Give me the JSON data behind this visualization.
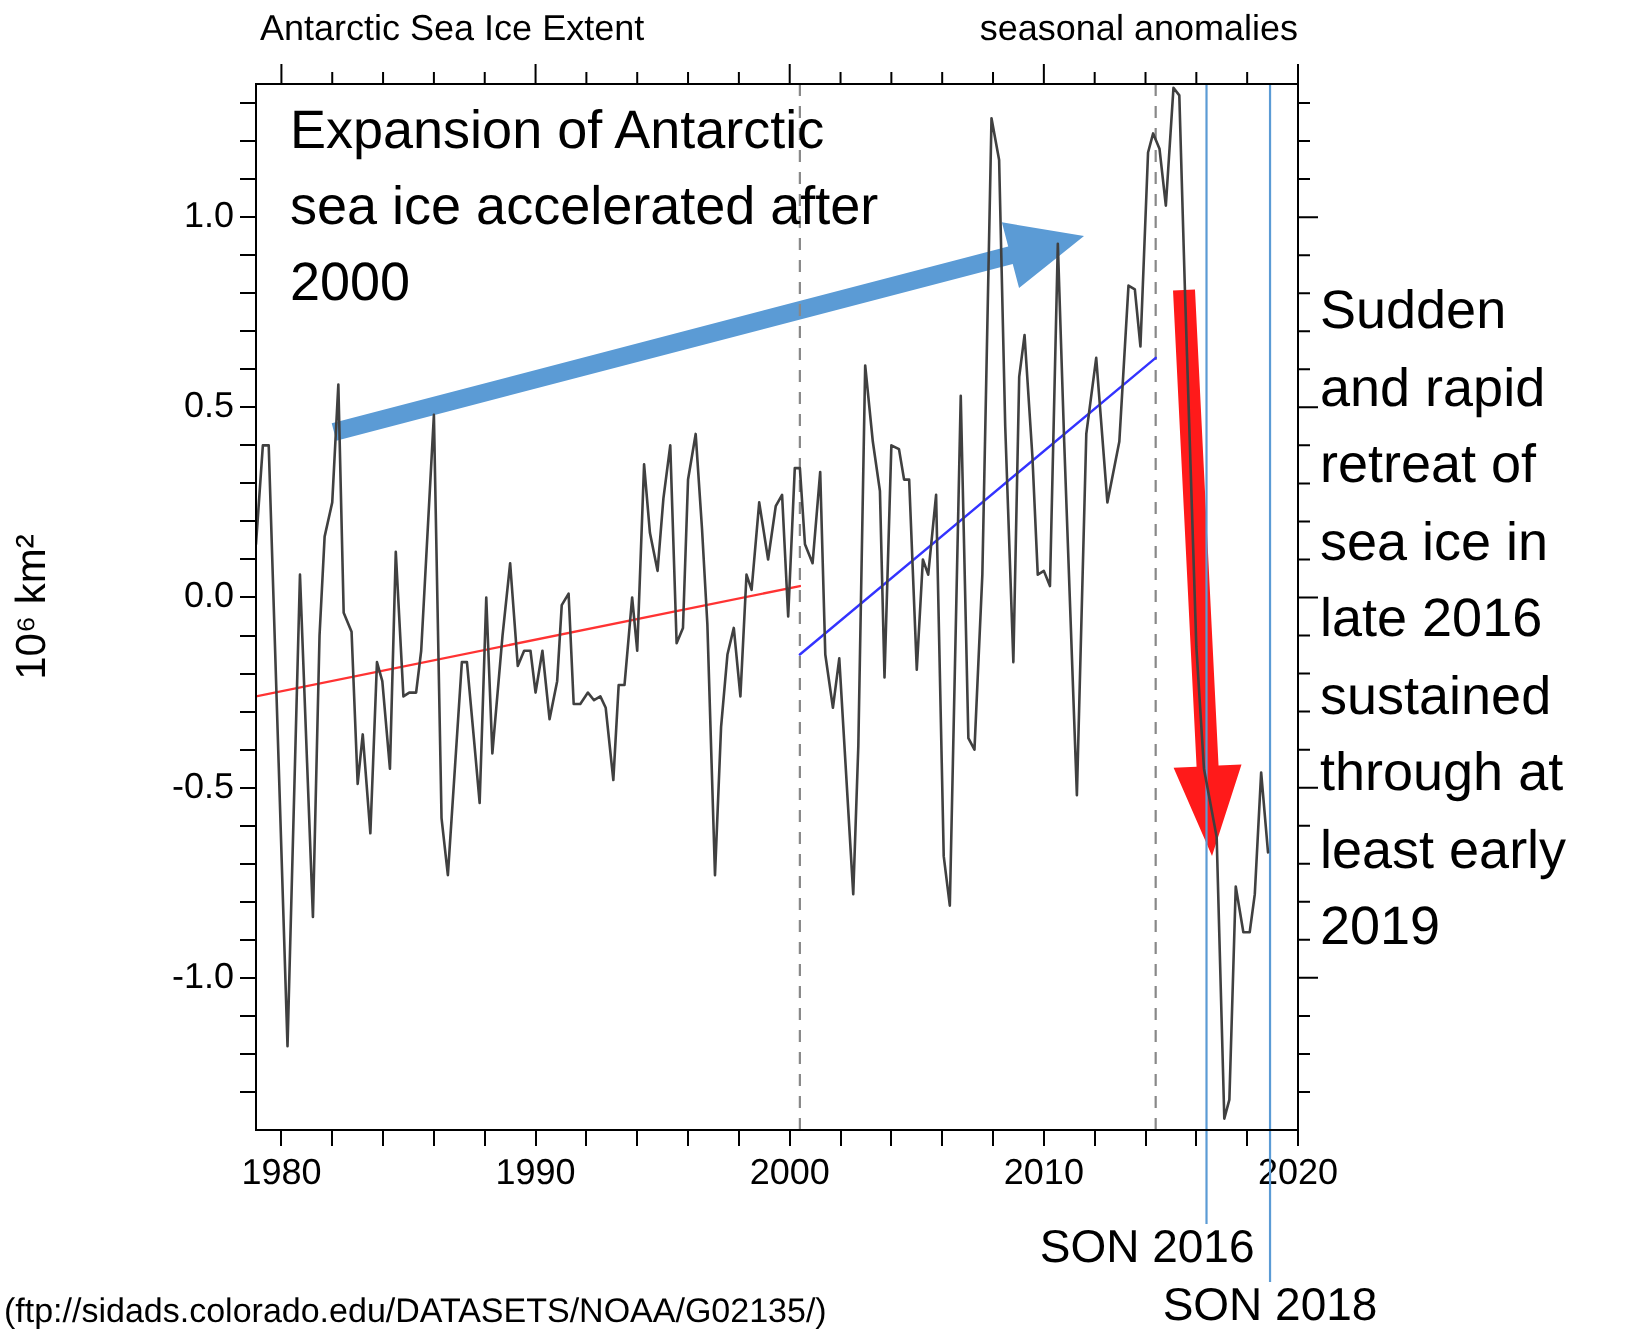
{
  "chart_data": {
    "type": "line",
    "title": "Antarctic Sea Ice Extent",
    "subtitle": "seasonal anomalies",
    "ylabel": "10⁶ km²",
    "annotations": [
      "Expansion of Antarctic sea ice accelerated after 2000",
      "Sudden and rapid retreat of sea ice in late 2016 sustained through at least early 2019",
      "(ftp://sidads.colorado.edu/DATASETS/NOAA/G02135/)"
    ],
    "xlim": [
      1979,
      2020
    ],
    "ylim": [
      -1.4,
      1.35
    ],
    "xticks": [
      1980,
      {
        "value": 1982,
        "label": null
      },
      {
        "value": 1984,
        "label": null
      },
      {
        "value": 1986,
        "label": null
      },
      {
        "value": 1988,
        "label": null
      },
      1990,
      {
        "value": 1992,
        "label": null
      },
      {
        "value": 1994,
        "label": null
      },
      {
        "value": 1996,
        "label": null
      },
      {
        "value": 1998,
        "label": null
      },
      2000,
      {
        "value": 2002,
        "label": null
      },
      {
        "value": 2004,
        "label": null
      },
      {
        "value": 2006,
        "label": null
      },
      {
        "value": 2008,
        "label": null
      },
      2010,
      {
        "value": 2012,
        "label": null
      },
      {
        "value": 2014,
        "label": null
      },
      {
        "value": 2016,
        "label": null
      },
      {
        "value": 2018,
        "label": null
      },
      2020
    ],
    "yticks": [
      {
        "value": -1.3,
        "label": null
      },
      {
        "value": -1.2,
        "label": null
      },
      {
        "value": -1.1,
        "label": null
      },
      {
        "value": -1.0,
        "label": "-1.0"
      },
      {
        "value": -0.9,
        "label": null
      },
      {
        "value": -0.8,
        "label": null
      },
      {
        "value": -0.7,
        "label": null
      },
      {
        "value": -0.6,
        "label": null
      },
      {
        "value": -0.5,
        "label": "-0.5"
      },
      {
        "value": -0.4,
        "label": null
      },
      {
        "value": -0.3,
        "label": null
      },
      {
        "value": -0.2,
        "label": null
      },
      {
        "value": -0.1,
        "label": null
      },
      {
        "value": 0,
        "label": "0.0"
      },
      {
        "value": 0.1,
        "label": null
      },
      {
        "value": 0.2,
        "label": null
      },
      {
        "value": 0.3,
        "label": null
      },
      {
        "value": 0.4,
        "label": null
      },
      {
        "value": 0.5,
        "label": "0.5"
      },
      {
        "value": 0.6,
        "label": null
      },
      {
        "value": 0.7,
        "label": null
      },
      {
        "value": 0.8,
        "label": null
      },
      {
        "value": 0.9,
        "label": null
      },
      {
        "value": 1.0,
        "label": "1.0"
      },
      {
        "value": 1.1,
        "label": null
      },
      {
        "value": 1.2,
        "label": null
      },
      {
        "value": 1.3,
        "label": null
      }
    ],
    "grid": false,
    "legend": false,
    "marker": "none",
    "line_style": "solid",
    "ref_lines": [
      {
        "axis": "x",
        "value": 2000.4,
        "color": "#888888",
        "line_style": "dashed"
      },
      {
        "axis": "x",
        "value": 2014.4,
        "color": "#888888",
        "line_style": "dashed"
      },
      {
        "axis": "x",
        "value": 2016.4,
        "label": "SON 2016",
        "color": "#5b9bd5",
        "line_style": "solid"
      },
      {
        "axis": "x",
        "value": 2018.9,
        "label": "SON 2018",
        "color": "#5b9bd5",
        "line_style": "solid"
      }
    ],
    "series": [
      {
        "color": "#404040",
        "x": [
          1979.0,
          1979.27,
          1979.5,
          1980.24,
          1980.73,
          1981.24,
          1981.5,
          1981.7,
          1982.0,
          1982.24,
          1982.45,
          1982.76,
          1983.0,
          1983.2,
          1983.5,
          1983.76,
          1983.97,
          1984.27,
          1984.5,
          1984.8,
          1985.03,
          1985.3,
          1985.5,
          1986.0,
          1986.3,
          1986.55,
          1987.1,
          1987.3,
          1987.6,
          1987.8,
          1988.06,
          1988.3,
          1988.7,
          1989.0,
          1989.3,
          1989.55,
          1989.8,
          1990.0,
          1990.27,
          1990.55,
          1990.85,
          1991.03,
          1991.3,
          1991.5,
          1991.76,
          1992.06,
          1992.3,
          1992.55,
          1992.76,
          1993.06,
          1993.27,
          1993.5,
          1993.8,
          1994.0,
          1994.27,
          1994.5,
          1994.8,
          1995.03,
          1995.3,
          1995.55,
          1995.8,
          1996.0,
          1996.3,
          1996.55,
          1996.76,
          1997.06,
          1997.3,
          1997.55,
          1997.8,
          1998.06,
          1998.3,
          1998.5,
          1998.8,
          1999.15,
          1999.45,
          1999.7,
          1999.94,
          2000.2,
          2000.4,
          2000.6,
          2000.9,
          2001.2,
          2001.4,
          2001.7,
          2001.95,
          2002.5,
          2002.7,
          2002.97,
          2003.27,
          2003.55,
          2003.73,
          2004.0,
          2004.3,
          2004.5,
          2004.7,
          2005.0,
          2005.24,
          2005.45,
          2005.76,
          2006.06,
          2006.3,
          2006.73,
          2007.03,
          2007.27,
          2007.58,
          2007.94,
          2008.24,
          2008.48,
          2008.8,
          2009.03,
          2009.24,
          2009.55,
          2009.76,
          2010.0,
          2010.24,
          2010.55,
          2010.8,
          2011.3,
          2011.67,
          2012.06,
          2012.5,
          2012.97,
          2013.33,
          2013.58,
          2013.8,
          2014.1,
          2014.3,
          2014.55,
          2014.8,
          2015.1,
          2015.33,
          2015.55,
          2016.0,
          2016.3,
          2016.8,
          2017.1,
          2017.3,
          2017.55,
          2017.85,
          2018.1,
          2018.3,
          2018.55,
          2018.82
        ],
        "values": [
          0.14,
          0.4,
          0.4,
          -1.18,
          0.06,
          -0.84,
          -0.1,
          0.16,
          0.25,
          0.56,
          -0.04,
          -0.09,
          -0.49,
          -0.36,
          -0.62,
          -0.17,
          -0.22,
          -0.45,
          0.12,
          -0.26,
          -0.25,
          -0.25,
          -0.14,
          0.48,
          -0.58,
          -0.73,
          -0.17,
          -0.17,
          -0.39,
          -0.54,
          0.0,
          -0.41,
          -0.1,
          0.09,
          -0.18,
          -0.14,
          -0.14,
          -0.25,
          -0.14,
          -0.32,
          -0.22,
          -0.02,
          0.01,
          -0.28,
          -0.28,
          -0.25,
          -0.27,
          -0.26,
          -0.29,
          -0.48,
          -0.23,
          -0.23,
          0.0,
          -0.14,
          0.35,
          0.17,
          0.07,
          0.26,
          0.4,
          -0.12,
          -0.08,
          0.31,
          0.43,
          0.18,
          -0.07,
          -0.73,
          -0.34,
          -0.15,
          -0.08,
          -0.26,
          0.06,
          0.02,
          0.25,
          0.1,
          0.24,
          0.27,
          -0.05,
          0.34,
          0.34,
          0.14,
          0.09,
          0.33,
          -0.15,
          -0.29,
          -0.16,
          -0.78,
          -0.39,
          0.61,
          0.41,
          0.28,
          -0.21,
          0.4,
          0.39,
          0.31,
          0.31,
          -0.19,
          0.1,
          0.06,
          0.27,
          -0.68,
          -0.81,
          0.53,
          -0.37,
          -0.4,
          0.06,
          1.26,
          1.15,
          0.45,
          -0.17,
          0.58,
          0.69,
          0.37,
          0.06,
          0.07,
          0.03,
          0.93,
          0.41,
          -0.52,
          0.43,
          0.63,
          0.25,
          0.41,
          0.82,
          0.81,
          0.66,
          1.17,
          1.22,
          1.18,
          1.03,
          1.34,
          1.32,
          0.81,
          -0.13,
          -0.45,
          -0.63,
          -1.37,
          -1.32,
          -0.76,
          -0.88,
          -0.88,
          -0.78,
          -0.46,
          -0.67
        ]
      },
      {
        "color": "#ff3333",
        "x": [
          1979,
          2000.4
        ],
        "values": [
          -0.26,
          0.03
        ]
      },
      {
        "color": "#3333ff",
        "x": [
          2000.4,
          2014.4
        ],
        "values": [
          -0.15,
          0.63
        ]
      }
    ]
  }
}
